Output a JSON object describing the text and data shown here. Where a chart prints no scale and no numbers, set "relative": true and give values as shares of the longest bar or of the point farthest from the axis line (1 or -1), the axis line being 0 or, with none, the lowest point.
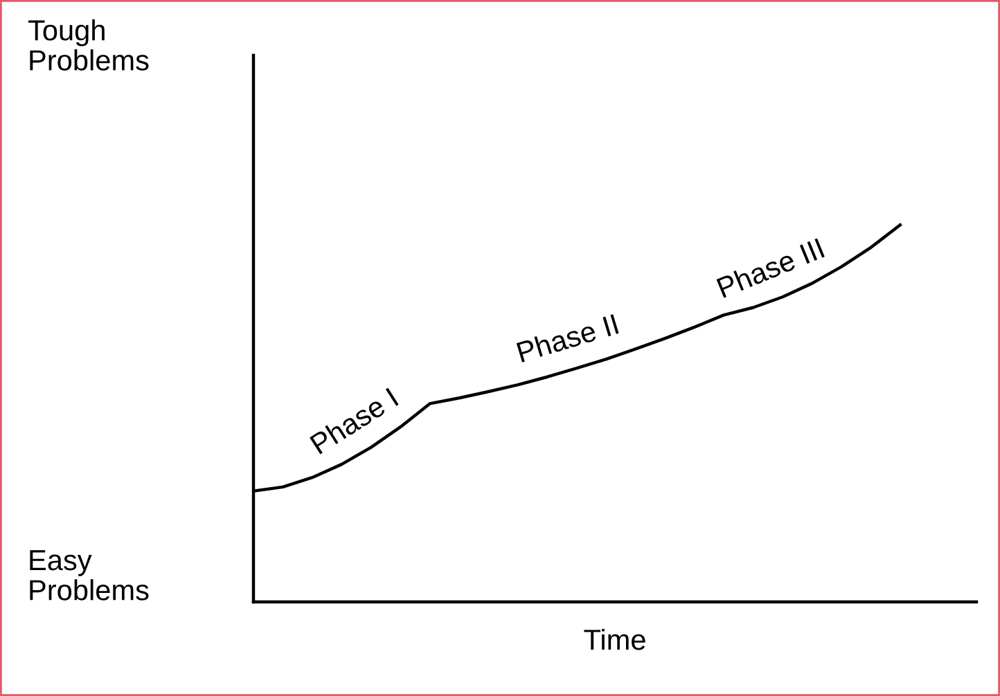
{
  "chart_data": {
    "type": "line",
    "relative": true,
    "xlabel": "Time",
    "color": "#000000",
    "categories": [
      null,
      null,
      null,
      null,
      null,
      null,
      null,
      null,
      null,
      null,
      null,
      null,
      null,
      null,
      null,
      null,
      null,
      null,
      null,
      null,
      null,
      null,
      null
    ],
    "values": [
      0.294,
      0.305,
      0.33,
      0.365,
      0.41,
      0.464,
      0.526,
      0.541,
      0.558,
      0.576,
      0.597,
      0.62,
      0.644,
      0.671,
      0.699,
      0.729,
      0.761,
      0.781,
      0.809,
      0.845,
      0.889,
      0.94,
      1.0
    ],
    "annotations": [
      "Tough\nProblems",
      "Easy\nProblems",
      "Phase I",
      "Phase II",
      "Phase III"
    ],
    "legend": false,
    "marker": "none",
    "line_style": "solid"
  }
}
